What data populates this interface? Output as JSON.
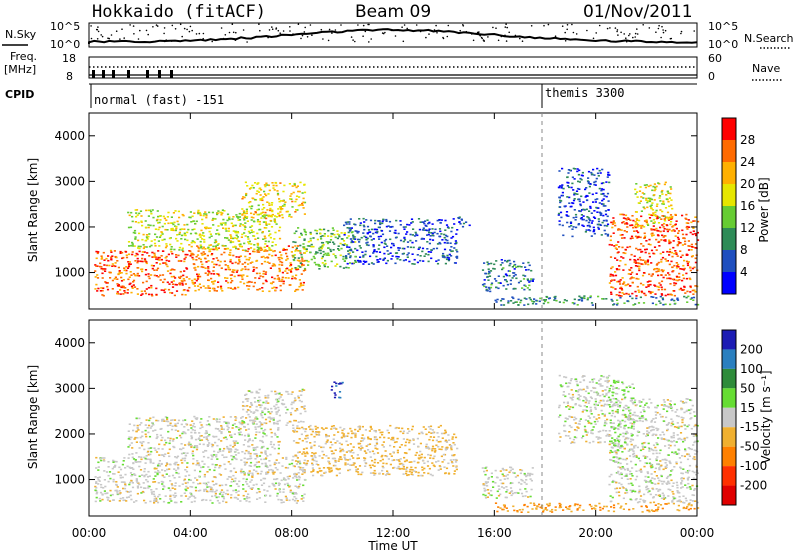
{
  "header": {
    "station": "Hokkaido (fitACF)",
    "beam": "Beam 09",
    "date": "01/Nov/2011"
  },
  "summary_panel": {
    "nsky_label": "N.Sky",
    "nsearch_label": "N.Search",
    "freq_label_line1": "Freq.",
    "freq_label_line2": "[MHz]",
    "nave_label": "Nave",
    "cpid_label": "CPID",
    "noise_ticks": [
      "10^5",
      "10^0"
    ],
    "freq_ticks": [
      "18",
      "8"
    ],
    "nave_ticks": [
      "60",
      "0"
    ],
    "cpid_segments": [
      {
        "start_hour": 0,
        "name": "normal (fast) -151"
      },
      {
        "start_hour": 18,
        "name": "themis 3300"
      }
    ]
  },
  "x_axis": {
    "label": "Time UT",
    "ticks": [
      "00:00",
      "04:00",
      "08:00",
      "12:00",
      "16:00",
      "20:00",
      "00:00"
    ],
    "range_hours": [
      0,
      24
    ]
  },
  "panels": [
    {
      "ylabel": "Slant Range [km]",
      "yticks": [
        "1000",
        "2000",
        "3000",
        "4000"
      ],
      "colorbar_label": "Power [dB]",
      "colorbar_ticks": [
        "4",
        "8",
        "12",
        "16",
        "20",
        "24",
        "28"
      ],
      "colors": [
        "#0000ff",
        "#1f4fbf",
        "#2e8b57",
        "#66cc33",
        "#e6e600",
        "#ffb000",
        "#ff6a00",
        "#ff0000"
      ]
    },
    {
      "ylabel": "Slant Range [km]",
      "yticks": [
        "1000",
        "2000",
        "3000",
        "4000"
      ],
      "colorbar_label": "Velocity [m s⁻¹]",
      "colorbar_ticks": [
        "200",
        "100",
        "50",
        "15",
        "-15",
        "-50",
        "-100",
        "-200"
      ],
      "colors": [
        "#1c1cb4",
        "#2a7fbf",
        "#2e8b3a",
        "#66dd33",
        "#c8c8c8",
        "#f0b030",
        "#ff8000",
        "#ff3000",
        "#e00000"
      ]
    }
  ],
  "chart_data": [
    {
      "type": "heatmap",
      "title": "Power [dB]",
      "xlabel": "Time UT",
      "ylabel": "Slant Range [km]",
      "xlim_hours": [
        0,
        24
      ],
      "ylim_km": [
        200,
        4500
      ],
      "zlim": [
        0,
        32
      ],
      "regions": [
        {
          "t0": 0.2,
          "t1": 4.0,
          "r0": 500,
          "r1": 1500,
          "value": 27
        },
        {
          "t0": 4.0,
          "t1": 8.5,
          "r0": 600,
          "r1": 1600,
          "value": 25
        },
        {
          "t0": 1.5,
          "t1": 7.5,
          "r0": 1500,
          "r1": 2400,
          "value": 17
        },
        {
          "t0": 6.0,
          "t1": 8.5,
          "r0": 2200,
          "r1": 3000,
          "value": 20
        },
        {
          "t0": 8.0,
          "t1": 10.5,
          "r0": 1100,
          "r1": 2000,
          "value": 14
        },
        {
          "t0": 10.0,
          "t1": 14.5,
          "r0": 1200,
          "r1": 2200,
          "value": 6
        },
        {
          "t0": 14.5,
          "t1": 15.0,
          "r0": 2000,
          "r1": 2300,
          "value": 5
        },
        {
          "t0": 15.5,
          "t1": 17.5,
          "r0": 600,
          "r1": 1300,
          "value": 8
        },
        {
          "t0": 18.5,
          "t1": 20.5,
          "r0": 1800,
          "r1": 3300,
          "value": 5
        },
        {
          "t0": 20.5,
          "t1": 24.0,
          "r0": 500,
          "r1": 2300,
          "value": 27
        },
        {
          "t0": 21.5,
          "t1": 23.0,
          "r0": 2000,
          "r1": 3000,
          "value": 18
        },
        {
          "t0": 16.0,
          "t1": 24.0,
          "r0": 300,
          "r1": 500,
          "value": 10
        }
      ]
    },
    {
      "type": "heatmap",
      "title": "Velocity [m s⁻¹]",
      "xlabel": "Time UT",
      "ylabel": "Slant Range [km]",
      "xlim_hours": [
        0,
        24
      ],
      "ylim_km": [
        200,
        4500
      ],
      "zlim": [
        -250,
        250
      ],
      "regions": [
        {
          "t0": 0.2,
          "t1": 8.5,
          "r0": 500,
          "r1": 1500,
          "value": 0
        },
        {
          "t0": 1.5,
          "t1": 7.5,
          "r0": 1500,
          "r1": 2400,
          "value": 0
        },
        {
          "t0": 6.0,
          "t1": 8.5,
          "r0": 2200,
          "r1": 3000,
          "value": 0
        },
        {
          "t0": 8.0,
          "t1": 14.5,
          "r0": 1100,
          "r1": 2200,
          "value": -40
        },
        {
          "t0": 15.5,
          "t1": 17.5,
          "r0": 600,
          "r1": 1300,
          "value": 0
        },
        {
          "t0": 18.5,
          "t1": 20.5,
          "r0": 1800,
          "r1": 3300,
          "value": 0
        },
        {
          "t0": 20.5,
          "t1": 24.0,
          "r0": 500,
          "r1": 2800,
          "value": 0
        },
        {
          "t0": 20.5,
          "t1": 21.5,
          "r0": 1600,
          "r1": 3200,
          "value": 30
        },
        {
          "t0": 9.5,
          "t1": 10.0,
          "r0": 2800,
          "r1": 3200,
          "value": 220
        },
        {
          "t0": 16.0,
          "t1": 24.0,
          "r0": 300,
          "r1": 500,
          "value": -80
        }
      ]
    }
  ]
}
